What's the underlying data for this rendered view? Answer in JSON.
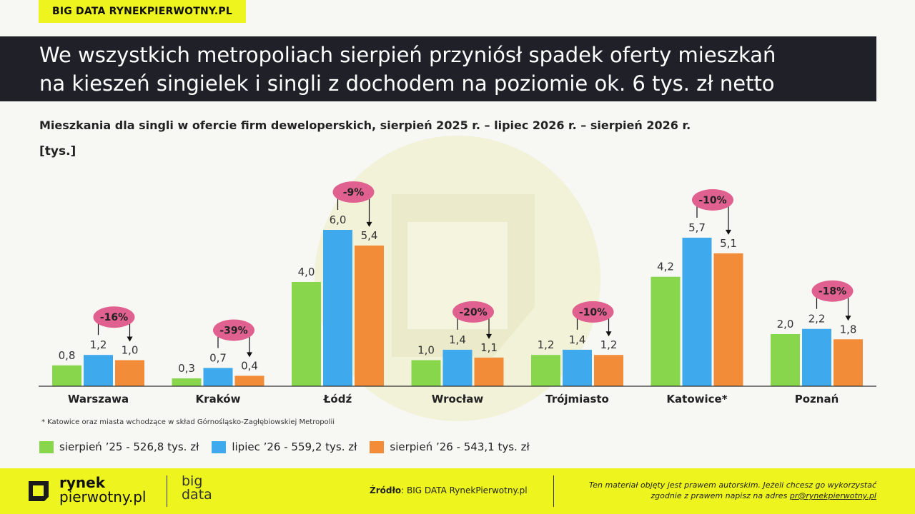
{
  "header": {
    "tag": "BIG DATA RYNEKPIERWOTNY.PL",
    "title_line1": "We wszystkich metropoliach sierpień przyniósł spadek oferty mieszkań",
    "title_line2": "na kieszeń singielek i singli z dochodem na poziomie ok. 6 tys. zł netto"
  },
  "chart_data": {
    "type": "bar",
    "title": "Mieszkania dla singli w ofercie firm deweloperskich, sierpień 2025 r.  – lipiec 2026 r. – sierpień 2026 r.",
    "ylabel": "[tys.]",
    "categories": [
      "Warszawa",
      "Kraków",
      "Łódź",
      "Wrocław",
      "Trójmiasto",
      "Katowice*",
      "Poznań"
    ],
    "series": [
      {
        "name": "sierpień ’25 - 526,8 tys. zł",
        "color": "#87d64c",
        "values": [
          0.8,
          0.3,
          4.0,
          1.0,
          1.2,
          4.2,
          2.0
        ],
        "labels": [
          "0,8",
          "0,3",
          "4,0",
          "1,0",
          "1,2",
          "4,2",
          "2,0"
        ]
      },
      {
        "name": "lipiec ’26 - 559,2 tys. zł",
        "color": "#3fa9ee",
        "values": [
          1.2,
          0.7,
          6.0,
          1.4,
          1.4,
          5.7,
          2.2
        ],
        "labels": [
          "1,2",
          "0,7",
          "6,0",
          "1,4",
          "1,4",
          "5,7",
          "2,2"
        ]
      },
      {
        "name": "sierpień ’26 - 543,1 tys. zł",
        "color": "#f28c38",
        "values": [
          1.0,
          0.4,
          5.4,
          1.1,
          1.2,
          5.1,
          1.8
        ],
        "labels": [
          "1,0",
          "0,4",
          "5,4",
          "1,1",
          "1,2",
          "5,1",
          "1,8"
        ]
      }
    ],
    "changes": [
      "-16%",
      "-39%",
      "-9%",
      "-20%",
      "-10%",
      "-10%",
      "-18%"
    ],
    "change_color": "#e0608f",
    "ylim": [
      0,
      7
    ],
    "grid": false,
    "legend_position": "bottom-left"
  },
  "footnote": "* Katowice oraz miasta wchodzące w skład Górnośląsko-Zagłębiowskiej Metropolii",
  "footer": {
    "logo_line1": "rynek",
    "logo_line2": "pierwotny.pl",
    "logo_big1": "big",
    "logo_big2": "data",
    "source_label": "Źródło",
    "source_text": ": BIG DATA RynekPierwotny.pl",
    "copyright_line1": "Ten materiał objęty jest prawem autorskim. Jeżeli chcesz go wykorzystać",
    "copyright_line2": "zgodnie z prawem napisz na adres",
    "copyright_email": "pr@rynekpierwotny.pl"
  }
}
